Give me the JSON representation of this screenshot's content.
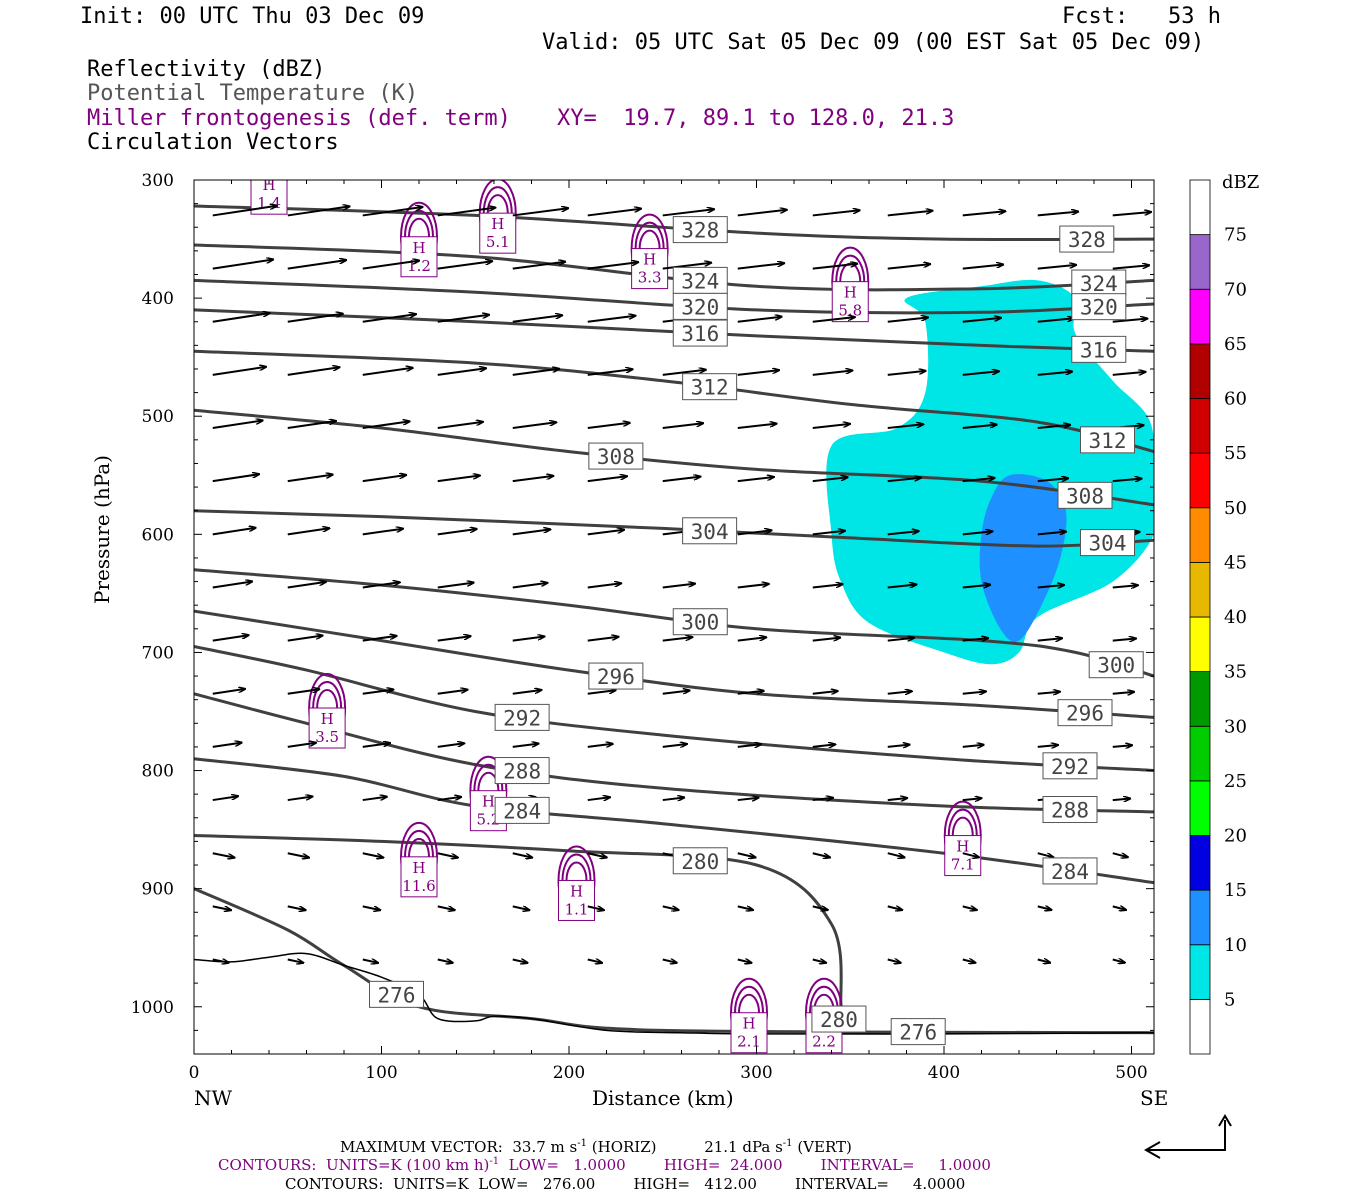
{
  "header": {
    "init": "Init: 00 UTC Thu 03 Dec 09",
    "fcst": "Fcst:   53 h",
    "valid": "Valid: 05 UTC Sat 05 Dec 09 (00 EST Sat 05 Dec 09)",
    "field1": "Reflectivity (dBZ)",
    "field2": "Potential Temperature (K)",
    "field3": "Miller frontogenesis (def. term)",
    "xy": "XY=  19.7, 89.1 to 128.0, 21.3",
    "field4": "Circulation Vectors"
  },
  "axes": {
    "ylabel": "Pressure (hPa)",
    "xlabel": "Distance (km)",
    "left_end": "NW",
    "right_end": "SE",
    "y_ticks": [
      "300",
      "400",
      "500",
      "600",
      "700",
      "800",
      "900",
      "1000"
    ],
    "x_ticks": [
      "0",
      "100",
      "200",
      "300",
      "400",
      "500"
    ]
  },
  "colorbar": {
    "title": "dBZ",
    "labels": [
      "75",
      "70",
      "65",
      "60",
      "55",
      "50",
      "45",
      "40",
      "35",
      "30",
      "25",
      "20",
      "15",
      "10",
      "5"
    ],
    "colors": [
      "#ffffff",
      "#00e5e5",
      "#1e90ff",
      "#0000e0",
      "#00ff00",
      "#00cc00",
      "#009900",
      "#ffff00",
      "#e6b800",
      "#ff8c00",
      "#ff0000",
      "#d00000",
      "#b00000",
      "#ff00ff",
      "#9966cc",
      "#ffffff"
    ]
  },
  "footer": {
    "max_vector": "MAXIMUM VECTOR:  33.7 m s",
    "max_vector_unit": "-1",
    "horiz": "(HORIZ)",
    "vert": "21.1 dPa s",
    "vert_unit": "-1",
    "vert_tail": "(VERT)",
    "contours1": "CONTOURS:  UNITS=K (100 km h)",
    "contours1_exp": "-1",
    "contours1_tail": "LOW=   1.0000        HIGH=  24.000        INTERVAL=     1.0000",
    "contours2": "CONTOURS:  UNITS=K  LOW=   276.00        HIGH=   412.00        INTERVAL=     4.0000"
  },
  "chart_data": {
    "type": "cross-section",
    "x_range_km": [
      0,
      512
    ],
    "y_range_hpa": [
      300,
      1040
    ],
    "y_scale": "linear",
    "theta_contours": [
      {
        "label": "328",
        "points": [
          [
            0,
            322
          ],
          [
            150,
            330
          ],
          [
            300,
            345
          ],
          [
            400,
            350
          ],
          [
            512,
            350
          ]
        ]
      },
      {
        "label": "324",
        "points": [
          [
            0,
            355
          ],
          [
            150,
            365
          ],
          [
            300,
            390
          ],
          [
            420,
            392
          ],
          [
            512,
            385
          ]
        ]
      },
      {
        "label": "320",
        "points": [
          [
            0,
            385
          ],
          [
            150,
            395
          ],
          [
            300,
            410
          ],
          [
            420,
            412
          ],
          [
            512,
            405
          ]
        ]
      },
      {
        "label": "316",
        "points": [
          [
            0,
            410
          ],
          [
            150,
            420
          ],
          [
            300,
            432
          ],
          [
            420,
            440
          ],
          [
            512,
            445
          ]
        ]
      },
      {
        "label": "312",
        "points": [
          [
            0,
            445
          ],
          [
            150,
            455
          ],
          [
            250,
            470
          ],
          [
            350,
            490
          ],
          [
            450,
            505
          ],
          [
            512,
            530
          ]
        ]
      },
      {
        "label": "308",
        "points": [
          [
            0,
            495
          ],
          [
            100,
            510
          ],
          [
            200,
            530
          ],
          [
            300,
            545
          ],
          [
            420,
            555
          ],
          [
            512,
            575
          ]
        ]
      },
      {
        "label": "304",
        "points": [
          [
            0,
            580
          ],
          [
            100,
            585
          ],
          [
            250,
            595
          ],
          [
            350,
            603
          ],
          [
            450,
            610
          ],
          [
            512,
            605
          ]
        ]
      },
      {
        "label": "300",
        "points": [
          [
            0,
            630
          ],
          [
            100,
            643
          ],
          [
            200,
            660
          ],
          [
            300,
            680
          ],
          [
            420,
            690
          ],
          [
            470,
            700
          ],
          [
            512,
            720
          ]
        ]
      },
      {
        "label": "296",
        "points": [
          [
            0,
            665
          ],
          [
            100,
            690
          ],
          [
            200,
            715
          ],
          [
            300,
            735
          ],
          [
            420,
            745
          ],
          [
            512,
            755
          ]
        ]
      },
      {
        "label": "292",
        "points": [
          [
            0,
            695
          ],
          [
            60,
            715
          ],
          [
            150,
            750
          ],
          [
            250,
            770
          ],
          [
            400,
            790
          ],
          [
            512,
            800
          ]
        ]
      },
      {
        "label": "288",
        "points": [
          [
            0,
            735
          ],
          [
            60,
            760
          ],
          [
            150,
            795
          ],
          [
            250,
            815
          ],
          [
            400,
            830
          ],
          [
            512,
            835
          ]
        ]
      },
      {
        "label": "284",
        "points": [
          [
            0,
            790
          ],
          [
            80,
            805
          ],
          [
            150,
            830
          ],
          [
            250,
            845
          ],
          [
            400,
            870
          ],
          [
            512,
            895
          ]
        ]
      },
      {
        "label": "280",
        "points": [
          [
            0,
            855
          ],
          [
            100,
            860
          ],
          [
            200,
            868
          ],
          [
            300,
            880
          ],
          [
            340,
            930
          ],
          [
            345,
            1000
          ],
          [
            343,
            1020
          ]
        ]
      },
      {
        "label": "276",
        "points": [
          [
            0,
            900
          ],
          [
            50,
            935
          ],
          [
            80,
            965
          ],
          [
            120,
            1000
          ],
          [
            180,
            1010
          ],
          [
            250,
            1020
          ],
          [
            512,
            1022
          ]
        ]
      }
    ],
    "frontogenesis_maxima": [
      {
        "label": "H",
        "value": "1.4",
        "x": 40,
        "p": 312
      },
      {
        "label": "H",
        "value": "1.2",
        "x": 120,
        "p": 365
      },
      {
        "label": "H",
        "value": "5.1",
        "x": 162,
        "p": 345
      },
      {
        "label": "H",
        "value": "3.3",
        "x": 243,
        "p": 375
      },
      {
        "label": "H",
        "value": "5.8",
        "x": 350,
        "p": 403
      },
      {
        "label": "H",
        "value": "3.5",
        "x": 71,
        "p": 764
      },
      {
        "label": "H",
        "value": "5.2",
        "x": 157,
        "p": 834
      },
      {
        "label": "H",
        "value": "11.6",
        "x": 120,
        "p": 890
      },
      {
        "label": "H",
        "value": "1.1",
        "x": 204,
        "p": 910
      },
      {
        "label": "H",
        "value": "7.1",
        "x": 410,
        "p": 872
      },
      {
        "label": "H",
        "value": "2.1",
        "x": 296,
        "p": 1022
      },
      {
        "label": "H",
        "value": "2.2",
        "x": 336,
        "p": 1022
      }
    ],
    "reflectivity_regions": [
      {
        "dbz_min": 5,
        "polygon": [
          [
            340,
            525
          ],
          [
            375,
            510
          ],
          [
            390,
            480
          ],
          [
            390,
            420
          ],
          [
            380,
            400
          ],
          [
            420,
            390
          ],
          [
            450,
            385
          ],
          [
            470,
            400
          ],
          [
            470,
            430
          ],
          [
            490,
            470
          ],
          [
            510,
            505
          ],
          [
            512,
            560
          ],
          [
            512,
            600
          ],
          [
            490,
            640
          ],
          [
            450,
            670
          ],
          [
            440,
            700
          ],
          [
            425,
            710
          ],
          [
            400,
            700
          ],
          [
            360,
            675
          ],
          [
            345,
            640
          ],
          [
            340,
            600
          ]
        ]
      },
      {
        "dbz_min": 10,
        "polygon": [
          [
            420,
            600
          ],
          [
            425,
            570
          ],
          [
            435,
            550
          ],
          [
            455,
            555
          ],
          [
            465,
            580
          ],
          [
            462,
            620
          ],
          [
            452,
            660
          ],
          [
            440,
            690
          ],
          [
            430,
            680
          ],
          [
            420,
            640
          ]
        ]
      }
    ],
    "reflectivity_min_shown": 5,
    "max_vector_horiz_ms": 33.7,
    "max_vector_vert_dpas": 21.1
  }
}
